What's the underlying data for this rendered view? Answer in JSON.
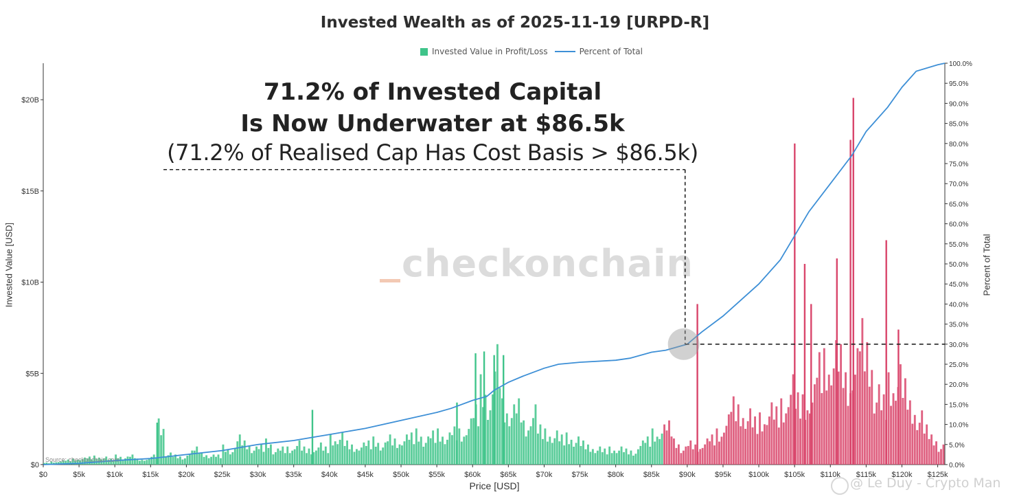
{
  "chart_data": {
    "type": "bar",
    "title": "Invested Wealth as of 2025-11-19 [URPD-R]",
    "legend": [
      {
        "label": "Invested Value in Profit/Loss",
        "color": "#3fc48a"
      },
      {
        "label": "Percent of Total",
        "color": "#3d8fd6"
      }
    ],
    "legend_placement": "top-center",
    "xlabel": "Price [USD]",
    "ylabel": "Invested Value [USD]",
    "y2label": "Percent of Total",
    "xlim": [
      0,
      126000
    ],
    "ylim": [
      0,
      22000000000
    ],
    "y2lim": [
      0,
      100
    ],
    "x_ticks": [
      0,
      5000,
      10000,
      15000,
      20000,
      25000,
      30000,
      35000,
      40000,
      45000,
      50000,
      55000,
      60000,
      65000,
      70000,
      75000,
      80000,
      85000,
      90000,
      95000,
      100000,
      105000,
      110000,
      115000,
      120000,
      125000
    ],
    "x_tick_labels": [
      "$0",
      "$5k",
      "$10k",
      "$15k",
      "$20k",
      "$25k",
      "$30k",
      "$35k",
      "$40k",
      "$45k",
      "$50k",
      "$55k",
      "$60k",
      "$65k",
      "$70k",
      "$75k",
      "$80k",
      "$85k",
      "$90k",
      "$95k",
      "$100k",
      "$105k",
      "$110k",
      "$115k",
      "$120k",
      "$125k"
    ],
    "y_ticks": [
      0,
      5000000000,
      10000000000,
      15000000000,
      20000000000
    ],
    "y_tick_labels": [
      "$0",
      "$5B",
      "$10B",
      "$15B",
      "$20B"
    ],
    "y2_ticks": [
      0,
      5,
      10,
      15,
      20,
      25,
      30,
      35,
      40,
      45,
      50,
      55,
      60,
      65,
      70,
      75,
      80,
      85,
      90,
      95,
      100
    ],
    "y2_tick_labels": [
      "0.0%",
      "5.0%",
      "10.0%",
      "15.0%",
      "20.0%",
      "25.0%",
      "30.0%",
      "35.0%",
      "40.0%",
      "45.0%",
      "50.0%",
      "55.0%",
      "60.0%",
      "65.0%",
      "70.0%",
      "75.0%",
      "80.0%",
      "85.0%",
      "90.0%",
      "95.0%",
      "100.0%"
    ],
    "current_price": 86500,
    "profit_color": "#3fc48a",
    "loss_color": "#d9456b",
    "line_color": "#3d8fd6",
    "bars": {
      "x_step": 1000,
      "x": [
        0,
        1000,
        2000,
        3000,
        4000,
        5000,
        6000,
        7000,
        8000,
        9000,
        10000,
        11000,
        12000,
        13000,
        14000,
        15000,
        16000,
        17000,
        18000,
        19000,
        20000,
        21000,
        22000,
        23000,
        24000,
        25000,
        26000,
        27000,
        28000,
        29000,
        30000,
        31000,
        32000,
        33000,
        34000,
        35000,
        36000,
        37000,
        38000,
        39000,
        40000,
        41000,
        42000,
        43000,
        44000,
        45000,
        46000,
        47000,
        48000,
        49000,
        50000,
        51000,
        52000,
        53000,
        54000,
        55000,
        56000,
        57000,
        58000,
        59000,
        60000,
        61000,
        62000,
        63000,
        64000,
        65000,
        66000,
        67000,
        68000,
        69000,
        70000,
        71000,
        72000,
        73000,
        74000,
        75000,
        76000,
        77000,
        78000,
        79000,
        80000,
        81000,
        82000,
        83000,
        84000,
        85000,
        86000,
        87000,
        88000,
        89000,
        90000,
        91000,
        92000,
        93000,
        94000,
        95000,
        96000,
        97000,
        98000,
        99000,
        100000,
        101000,
        102000,
        103000,
        104000,
        105000,
        106000,
        107000,
        108000,
        109000,
        110000,
        111000,
        112000,
        113000,
        114000,
        115000,
        116000,
        117000,
        118000,
        119000,
        120000,
        121000,
        122000,
        123000,
        124000,
        125000
      ],
      "values": [
        0.1,
        0.15,
        0.2,
        0.25,
        0.3,
        0.35,
        0.4,
        0.45,
        0.4,
        0.3,
        0.5,
        0.4,
        0.5,
        0.3,
        0.3,
        0.5,
        2.3,
        0.6,
        0.5,
        0.4,
        0.7,
        0.9,
        0.6,
        0.5,
        0.5,
        1.0,
        0.8,
        1.5,
        1.2,
        0.9,
        1.0,
        1.3,
        0.8,
        0.9,
        0.9,
        1.2,
        0.9,
        0.8,
        1.1,
        0.9,
        1.5,
        1.6,
        1.2,
        1.0,
        1.1,
        1.2,
        1.4,
        1.1,
        1.5,
        1.3,
        1.5,
        1.6,
        1.8,
        1.4,
        1.7,
        1.8,
        1.6,
        1.9,
        1.8,
        2.3,
        3.0,
        4.5,
        3.5,
        6.0,
        3.3,
        3.0,
        3.3,
        2.2,
        3.0,
        2.0,
        1.8,
        1.7,
        1.5,
        1.6,
        1.4,
        1.2,
        1.0,
        0.9,
        0.8,
        0.9,
        0.9,
        0.8,
        0.7,
        1.2,
        1.4,
        1.8,
        2.0,
        2.2,
        1.3,
        0.9,
        1.2,
        1.0,
        1.3,
        1.5,
        1.8,
        2.5,
        3.4,
        3.0,
        2.8,
        2.4,
        2.6,
        3.1,
        2.9,
        3.3,
        4.5,
        3.6,
        3.5,
        4.0,
        5.6,
        5.8,
        6.2,
        6.0,
        4.6,
        5.8,
        7.3,
        6.1,
        4.0,
        3.5,
        4.6,
        5.0,
        4.3,
        3.2,
        2.7,
        2.0,
        1.5,
        1.0
      ],
      "spikes": [
        {
          "x": 15800,
          "value": 2.3
        },
        {
          "x": 37500,
          "value": 3.0
        },
        {
          "x": 57700,
          "value": 3.4
        },
        {
          "x": 60300,
          "value": 6.1
        },
        {
          "x": 61500,
          "value": 6.2
        },
        {
          "x": 62900,
          "value": 6.0
        },
        {
          "x": 64200,
          "value": 6.0
        },
        {
          "x": 91300,
          "value": 8.8
        },
        {
          "x": 104900,
          "value": 17.6
        },
        {
          "x": 107200,
          "value": 8.8
        },
        {
          "x": 110800,
          "value": 11.3
        },
        {
          "x": 113100,
          "value": 20.1
        },
        {
          "x": 112700,
          "value": 17.8
        },
        {
          "x": 117700,
          "value": 12.3
        },
        {
          "x": 106300,
          "value": 11.0
        },
        {
          "x": 119400,
          "value": 7.4
        }
      ]
    },
    "percent_line": {
      "x": [
        0,
        5000,
        10000,
        15000,
        20000,
        25000,
        30000,
        35000,
        40000,
        45000,
        50000,
        55000,
        57000,
        60000,
        62000,
        63000,
        64000,
        65000,
        67000,
        70000,
        72000,
        75000,
        80000,
        82000,
        85000,
        87000,
        90000,
        92000,
        95000,
        100000,
        103000,
        105000,
        107000,
        110000,
        113000,
        115000,
        118000,
        120000,
        122000,
        125000,
        126000
      ],
      "y": [
        0.0,
        0.3,
        1.0,
        1.5,
        2.5,
        3.5,
        5.0,
        6.0,
        7.5,
        9.0,
        11.0,
        13.0,
        14.0,
        16.0,
        17.0,
        18.5,
        19.5,
        20.5,
        22.0,
        24.0,
        25.0,
        25.5,
        26.0,
        26.5,
        28.0,
        28.5,
        30.0,
        33.0,
        37.0,
        45.0,
        51.0,
        57.0,
        63.0,
        70.0,
        77.0,
        83.0,
        89.0,
        94.0,
        98.0,
        99.6,
        100.0
      ]
    },
    "marker": {
      "x": 89500,
      "percent": 30.0
    },
    "dashed_vertical_x": 89700,
    "dashed_horizontal_percent": 30.0,
    "dashed_top_percent": 73.5,
    "dashed_left_x": 16800
  },
  "annotation": {
    "line1": "71.2% of Invested Capital",
    "line2": "Is Now Underwater at $86.5k",
    "line3": "(71.2% of Realised Cap Has Cost Basis > $86.5k)"
  },
  "watermark": "checkonchain",
  "source": "Source: checkonchain.com",
  "attribution": "@ Le Duy - Crypto Man"
}
